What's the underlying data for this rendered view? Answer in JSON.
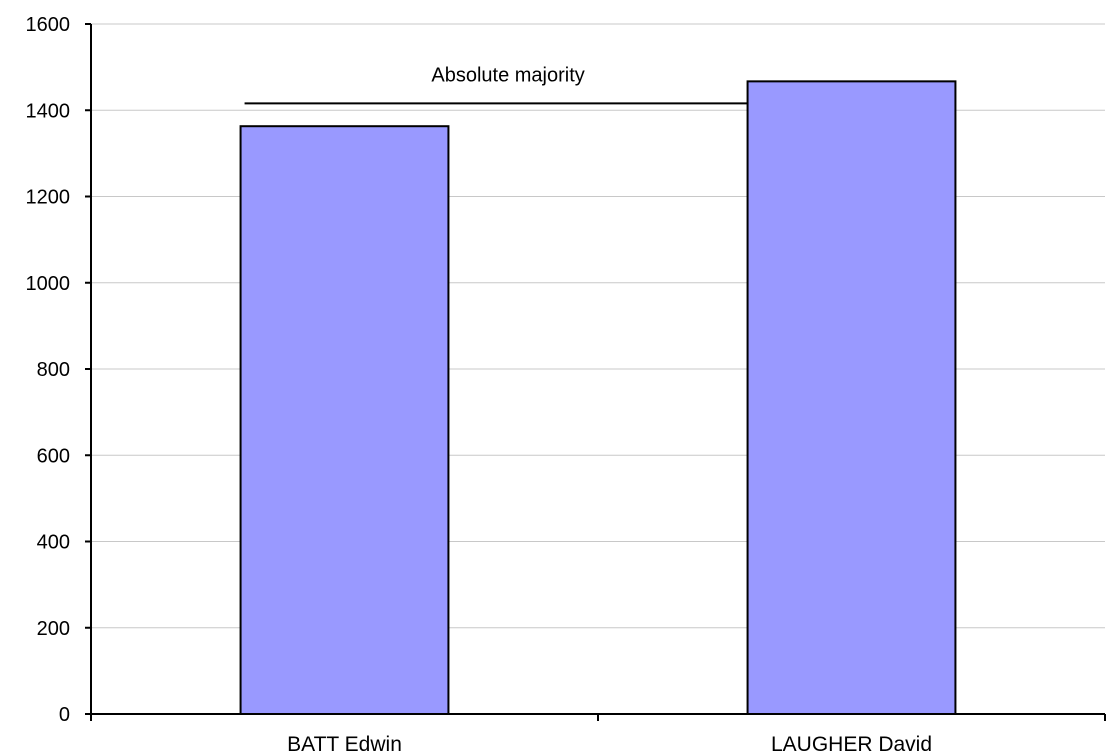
{
  "chart_data": {
    "type": "bar",
    "categories": [
      "BATT Edwin",
      "LAUGHER David"
    ],
    "values": [
      1363,
      1467
    ],
    "ylim": [
      0,
      1600
    ],
    "yticks": [
      0,
      200,
      400,
      600,
      800,
      1000,
      1200,
      1400,
      1600
    ],
    "grid": true,
    "legend": "none",
    "bar_color": "#9999ff",
    "reference_line": {
      "label": "Absolute majority",
      "value": 1416
    }
  }
}
